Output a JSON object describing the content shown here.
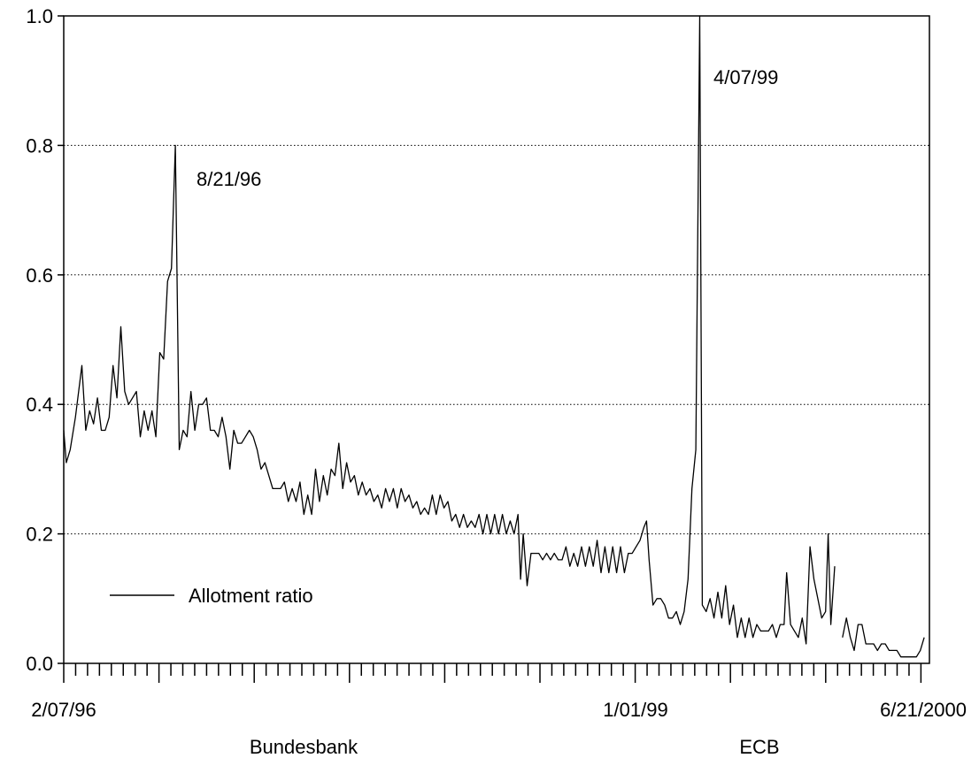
{
  "chart_data": {
    "type": "line",
    "title": "",
    "xlabel": "",
    "ylabel": "",
    "ylim": [
      0,
      1.0
    ],
    "yticks": [
      "0.0",
      "0.2",
      "0.4",
      "0.6",
      "0.8",
      "1.0"
    ],
    "xtick_labels": [
      "2/07/96",
      "1/01/99",
      "6/21/2000"
    ],
    "regime_labels": [
      "Bundesbank",
      "ECB"
    ],
    "grid": "horizontal dotted",
    "legend_placement": "bottom-left",
    "annotations": [
      "8/21/96",
      "4/07/99"
    ],
    "series": [
      {
        "name": "Allotment ratio",
        "color": "#000000",
        "segments": [
          [
            [
              0,
              0.36
            ],
            [
              2,
              0.31
            ],
            [
              5,
              0.33
            ],
            [
              9,
              0.38
            ],
            [
              14,
              0.46
            ],
            [
              17,
              0.36
            ],
            [
              20,
              0.39
            ],
            [
              23,
              0.37
            ],
            [
              26,
              0.41
            ],
            [
              29,
              0.36
            ],
            [
              32,
              0.36
            ],
            [
              35,
              0.38
            ],
            [
              38,
              0.46
            ],
            [
              41,
              0.41
            ],
            [
              44,
              0.52
            ],
            [
              47,
              0.42
            ],
            [
              50,
              0.4
            ],
            [
              53,
              0.41
            ],
            [
              56,
              0.42
            ],
            [
              59,
              0.35
            ],
            [
              62,
              0.39
            ],
            [
              65,
              0.36
            ],
            [
              68,
              0.39
            ],
            [
              71,
              0.35
            ],
            [
              74,
              0.48
            ],
            [
              77,
              0.47
            ],
            [
              80,
              0.59
            ],
            [
              83,
              0.61
            ],
            [
              86,
              0.8
            ],
            [
              89,
              0.33
            ],
            [
              92,
              0.36
            ],
            [
              95,
              0.35
            ],
            [
              98,
              0.42
            ],
            [
              101,
              0.36
            ],
            [
              104,
              0.4
            ],
            [
              107,
              0.4
            ],
            [
              110,
              0.41
            ],
            [
              113,
              0.36
            ],
            [
              116,
              0.36
            ],
            [
              119,
              0.35
            ],
            [
              122,
              0.38
            ],
            [
              125,
              0.35
            ],
            [
              128,
              0.3
            ],
            [
              131,
              0.36
            ],
            [
              134,
              0.34
            ],
            [
              137,
              0.34
            ],
            [
              140,
              0.35
            ],
            [
              143,
              0.36
            ],
            [
              146,
              0.35
            ],
            [
              149,
              0.33
            ],
            [
              152,
              0.3
            ],
            [
              155,
              0.31
            ],
            [
              158,
              0.29
            ],
            [
              161,
              0.27
            ],
            [
              164,
              0.27
            ],
            [
              167,
              0.27
            ],
            [
              170,
              0.28
            ],
            [
              173,
              0.25
            ],
            [
              176,
              0.27
            ],
            [
              179,
              0.25
            ],
            [
              182,
              0.28
            ],
            [
              185,
              0.23
            ],
            [
              188,
              0.26
            ],
            [
              191,
              0.23
            ],
            [
              194,
              0.3
            ],
            [
              197,
              0.25
            ],
            [
              200,
              0.29
            ],
            [
              203,
              0.26
            ],
            [
              206,
              0.3
            ],
            [
              209,
              0.29
            ],
            [
              212,
              0.34
            ],
            [
              215,
              0.27
            ],
            [
              218,
              0.31
            ],
            [
              221,
              0.28
            ],
            [
              224,
              0.29
            ],
            [
              227,
              0.26
            ],
            [
              230,
              0.28
            ],
            [
              233,
              0.26
            ],
            [
              236,
              0.27
            ],
            [
              239,
              0.25
            ],
            [
              242,
              0.26
            ],
            [
              245,
              0.24
            ],
            [
              248,
              0.27
            ],
            [
              251,
              0.25
            ],
            [
              254,
              0.27
            ],
            [
              257,
              0.24
            ],
            [
              260,
              0.27
            ],
            [
              263,
              0.25
            ],
            [
              266,
              0.26
            ],
            [
              269,
              0.24
            ],
            [
              272,
              0.25
            ],
            [
              275,
              0.23
            ],
            [
              278,
              0.24
            ],
            [
              281,
              0.23
            ],
            [
              284,
              0.26
            ],
            [
              287,
              0.23
            ],
            [
              290,
              0.26
            ],
            [
              293,
              0.24
            ],
            [
              296,
              0.25
            ],
            [
              299,
              0.22
            ],
            [
              302,
              0.23
            ],
            [
              305,
              0.21
            ],
            [
              308,
              0.23
            ],
            [
              311,
              0.21
            ],
            [
              314,
              0.22
            ],
            [
              317,
              0.21
            ],
            [
              320,
              0.23
            ],
            [
              323,
              0.2
            ],
            [
              326,
              0.23
            ],
            [
              329,
              0.2
            ],
            [
              332,
              0.23
            ],
            [
              335,
              0.2
            ],
            [
              338,
              0.23
            ],
            [
              341,
              0.2
            ],
            [
              344,
              0.22
            ],
            [
              347,
              0.2
            ],
            [
              350,
              0.23
            ],
            [
              352,
              0.13
            ],
            [
              354,
              0.2
            ],
            [
              357,
              0.12
            ],
            [
              360,
              0.17
            ],
            [
              363,
              0.17
            ],
            [
              366,
              0.17
            ],
            [
              369,
              0.16
            ],
            [
              372,
              0.17
            ],
            [
              375,
              0.16
            ],
            [
              378,
              0.17
            ],
            [
              381,
              0.16
            ],
            [
              384,
              0.16
            ],
            [
              387,
              0.18
            ],
            [
              390,
              0.15
            ],
            [
              393,
              0.17
            ],
            [
              396,
              0.15
            ],
            [
              399,
              0.18
            ],
            [
              402,
              0.15
            ],
            [
              405,
              0.18
            ],
            [
              408,
              0.15
            ],
            [
              411,
              0.19
            ],
            [
              414,
              0.14
            ],
            [
              417,
              0.18
            ],
            [
              420,
              0.14
            ],
            [
              423,
              0.18
            ],
            [
              426,
              0.14
            ],
            [
              429,
              0.18
            ],
            [
              432,
              0.14
            ],
            [
              435,
              0.17
            ],
            [
              438,
              0.17
            ],
            [
              441,
              0.18
            ],
            [
              444,
              0.19
            ],
            [
              447,
              0.21
            ],
            [
              449,
              0.22
            ],
            [
              451,
              0.16
            ],
            [
              454,
              0.09
            ],
            [
              457,
              0.1
            ],
            [
              460,
              0.1
            ],
            [
              463,
              0.09
            ],
            [
              466,
              0.07
            ],
            [
              469,
              0.07
            ],
            [
              472,
              0.08
            ],
            [
              475,
              0.06
            ],
            [
              478,
              0.08
            ],
            [
              481,
              0.13
            ],
            [
              484,
              0.27
            ],
            [
              487,
              0.33
            ],
            [
              490,
              1.0
            ],
            [
              492,
              0.09
            ],
            [
              495,
              0.08
            ],
            [
              498,
              0.1
            ],
            [
              501,
              0.07
            ],
            [
              504,
              0.11
            ],
            [
              507,
              0.07
            ],
            [
              510,
              0.12
            ],
            [
              513,
              0.06
            ],
            [
              516,
              0.09
            ],
            [
              519,
              0.04
            ],
            [
              522,
              0.07
            ],
            [
              525,
              0.04
            ],
            [
              528,
              0.07
            ],
            [
              531,
              0.04
            ],
            [
              534,
              0.06
            ],
            [
              537,
              0.05
            ],
            [
              540,
              0.05
            ],
            [
              543,
              0.05
            ],
            [
              546,
              0.06
            ],
            [
              549,
              0.04
            ],
            [
              552,
              0.06
            ],
            [
              555,
              0.06
            ],
            [
              557,
              0.14
            ],
            [
              560,
              0.06
            ],
            [
              563,
              0.05
            ],
            [
              566,
              0.04
            ],
            [
              569,
              0.07
            ],
            [
              572,
              0.03
            ],
            [
              575,
              0.18
            ],
            [
              578,
              0.13
            ],
            [
              581,
              0.1
            ],
            [
              584,
              0.07
            ],
            [
              587,
              0.08
            ],
            [
              589,
              0.2
            ],
            [
              591,
              0.06
            ],
            [
              594,
              0.15
            ]
          ],
          [
            [
              600,
              0.04
            ],
            [
              603,
              0.07
            ],
            [
              606,
              0.04
            ],
            [
              609,
              0.02
            ],
            [
              612,
              0.06
            ],
            [
              615,
              0.06
            ],
            [
              618,
              0.03
            ],
            [
              621,
              0.03
            ],
            [
              624,
              0.03
            ],
            [
              627,
              0.02
            ],
            [
              630,
              0.03
            ],
            [
              633,
              0.03
            ],
            [
              636,
              0.02
            ],
            [
              639,
              0.02
            ],
            [
              642,
              0.02
            ],
            [
              645,
              0.01
            ],
            [
              648,
              0.01
            ],
            [
              651,
              0.01
            ],
            [
              654,
              0.01
            ],
            [
              657,
              0.01
            ],
            [
              660,
              0.02
            ],
            [
              663,
              0.04
            ]
          ]
        ]
      }
    ]
  }
}
